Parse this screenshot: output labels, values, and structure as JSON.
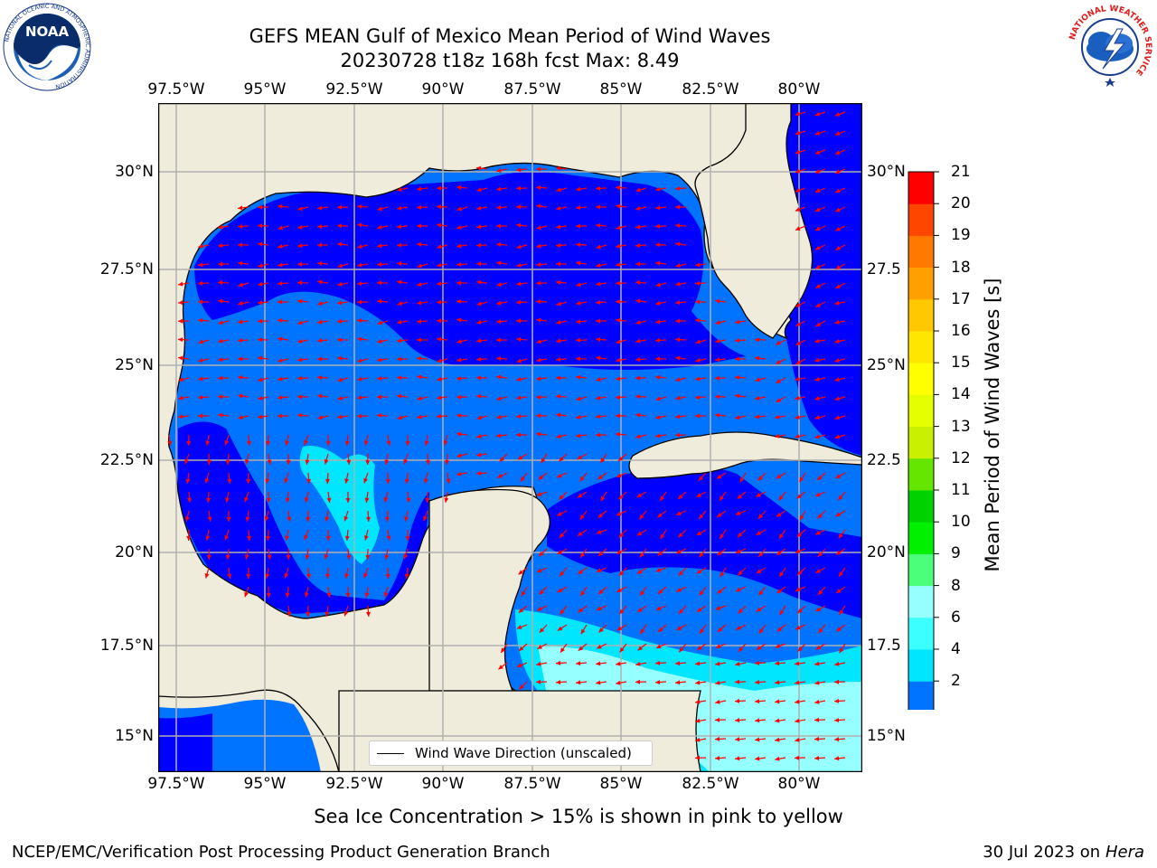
{
  "title": {
    "line1": "GEFS MEAN Gulf of Mexico Mean Period of Wind Waves",
    "line2": "20230728 t18z 168h fcst   Max: 8.49"
  },
  "map": {
    "lon_ticks": [
      "97.5°W",
      "95°W",
      "92.5°W",
      "90°W",
      "87.5°W",
      "85°W",
      "82.5°W",
      "80°W"
    ],
    "lat_ticks": [
      "30°N",
      "27.5°N",
      "25°N",
      "22.5°N",
      "20°N",
      "17.5°N",
      "15°N"
    ],
    "lat_ticks_right": [
      "30°N",
      "27.5",
      "25°N",
      "22.5",
      "20°N",
      "17.5",
      "15°N"
    ],
    "legend_label": "Wind Wave Direction (unscaled)",
    "arrow_color": "#ff0000",
    "land_color": "#efecdc"
  },
  "colorbar": {
    "label": "Mean Period of Wind Waves [s]",
    "ticks": [
      "21",
      "20",
      "19",
      "18",
      "17",
      "16",
      "15",
      "14",
      "13",
      "12",
      "11",
      "10",
      "9",
      "8",
      "6",
      "4",
      "2"
    ],
    "colors_bottom_to_top": [
      "#0073ff",
      "#00e6ff",
      "#3cffff",
      "#96ffff",
      "#4cff7a",
      "#00f000",
      "#00d200",
      "#64e600",
      "#c8f000",
      "#e6ff00",
      "#ffff00",
      "#ffe600",
      "#ffc800",
      "#ffa000",
      "#ff7800",
      "#ff4600",
      "#ff0000"
    ],
    "underflow_color": "#0000ff"
  },
  "footer": {
    "sea_ice_note": "Sea Ice Concentration > 15% is shown in pink to yellow",
    "branch": "NCEP/EMC/Verification Post Processing Product Generation Branch",
    "date": "30 Jul 2023 on ",
    "host": "Hera"
  },
  "logos": {
    "noaa_text": "NOAA",
    "noaa_ring": "NATIONAL OCEANIC AND ATMOSPHERIC ADMINISTRATION",
    "nws_ring": "NATIONAL WEATHER SERVICE"
  }
}
